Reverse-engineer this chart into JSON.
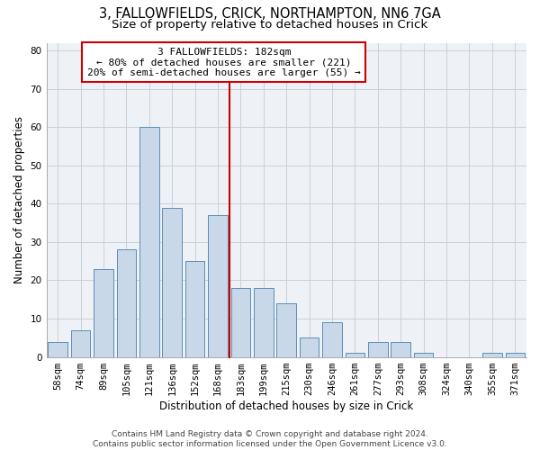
{
  "title": "3, FALLOWFIELDS, CRICK, NORTHAMPTON, NN6 7GA",
  "subtitle": "Size of property relative to detached houses in Crick",
  "xlabel": "Distribution of detached houses by size in Crick",
  "ylabel": "Number of detached properties",
  "bar_labels": [
    "58sqm",
    "74sqm",
    "89sqm",
    "105sqm",
    "121sqm",
    "136sqm",
    "152sqm",
    "168sqm",
    "183sqm",
    "199sqm",
    "215sqm",
    "230sqm",
    "246sqm",
    "261sqm",
    "277sqm",
    "293sqm",
    "308sqm",
    "324sqm",
    "340sqm",
    "355sqm",
    "371sqm"
  ],
  "bar_values": [
    4,
    7,
    23,
    28,
    60,
    39,
    25,
    37,
    18,
    18,
    14,
    5,
    9,
    1,
    4,
    4,
    1,
    0,
    0,
    1,
    1
  ],
  "bar_color": "#c8d8e8",
  "bar_edge_color": "#5b8db8",
  "subject_line_color": "#cc0000",
  "annotation_text": "3 FALLOWFIELDS: 182sqm\n← 80% of detached houses are smaller (221)\n20% of semi-detached houses are larger (55) →",
  "annotation_box_color": "#ffffff",
  "annotation_box_edge_color": "#cc0000",
  "ylim": [
    0,
    82
  ],
  "yticks": [
    0,
    10,
    20,
    30,
    40,
    50,
    60,
    70,
    80
  ],
  "grid_color": "#c8d0d8",
  "bg_color": "#eef2f6",
  "footer": "Contains HM Land Registry data © Crown copyright and database right 2024.\nContains public sector information licensed under the Open Government Licence v3.0.",
  "title_fontsize": 10.5,
  "subtitle_fontsize": 9.5,
  "axis_label_fontsize": 8.5,
  "tick_fontsize": 7.5,
  "footer_fontsize": 6.5
}
